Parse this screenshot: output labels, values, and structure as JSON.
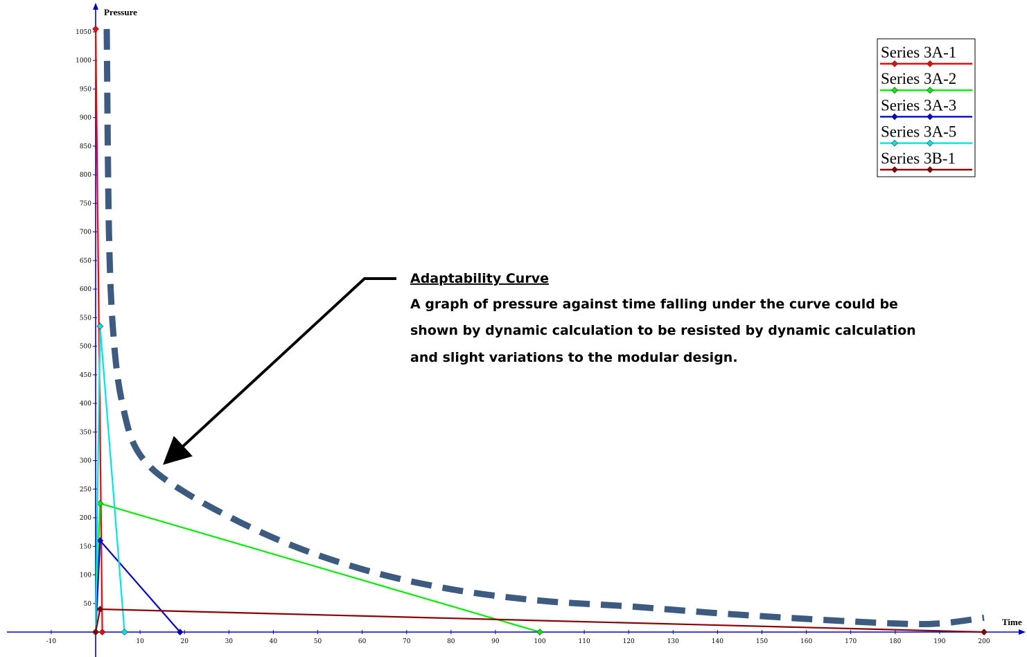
{
  "chart_data": {
    "type": "line",
    "xlabel": "Time",
    "ylabel": "Pressure",
    "xlim": [
      -20,
      205
    ],
    "ylim": [
      -45,
      1085
    ],
    "x_ticks": [
      -10,
      10,
      20,
      30,
      40,
      50,
      60,
      70,
      80,
      90,
      100,
      110,
      120,
      130,
      140,
      150,
      160,
      170,
      180,
      190,
      200
    ],
    "y_ticks": [
      50,
      100,
      150,
      200,
      250,
      300,
      350,
      400,
      450,
      500,
      550,
      600,
      650,
      700,
      750,
      800,
      850,
      900,
      950,
      1000,
      1050
    ],
    "series": [
      {
        "name": "Series 3A-1",
        "color": "#ff0000",
        "points": [
          [
            0,
            1055
          ],
          [
            1.5,
            0
          ]
        ]
      },
      {
        "name": "Series 3A-2",
        "color": "#00ee00",
        "points": [
          [
            0,
            0
          ],
          [
            1,
            225
          ],
          [
            100,
            0
          ]
        ]
      },
      {
        "name": "Series 3A-3",
        "color": "#0000dd",
        "points": [
          [
            0,
            0
          ],
          [
            1,
            160
          ],
          [
            19,
            0
          ]
        ]
      },
      {
        "name": "Series 3A-5",
        "color": "#00e5e5",
        "points": [
          [
            0,
            0
          ],
          [
            1,
            535
          ],
          [
            6.5,
            0
          ]
        ]
      },
      {
        "name": "Series 3B-1",
        "color": "#8b0000",
        "points": [
          [
            0,
            0
          ],
          [
            1,
            40
          ],
          [
            200,
            0
          ]
        ]
      }
    ],
    "adaptability_curve": {
      "color": "#3d5a80",
      "style": "dashed",
      "points": [
        [
          2.5,
          1055
        ],
        [
          3,
          700
        ],
        [
          4,
          520
        ],
        [
          6,
          400
        ],
        [
          10,
          310
        ],
        [
          20,
          245
        ],
        [
          40,
          165
        ],
        [
          60,
          110
        ],
        [
          80,
          75
        ],
        [
          100,
          55
        ],
        [
          120,
          45
        ],
        [
          140,
          33
        ],
        [
          160,
          23
        ],
        [
          180,
          15
        ],
        [
          190,
          15
        ],
        [
          200,
          25
        ]
      ]
    },
    "legend": {
      "placement": "top-right"
    },
    "grid": false,
    "annotation": {
      "title": "Adaptability Curve",
      "lines": [
        "A graph of pressure against time falling under the curve could be",
        "shown by dynamic calculation to be resisted by dynamic calculation",
        "and slight variations to the modular design."
      ]
    }
  }
}
